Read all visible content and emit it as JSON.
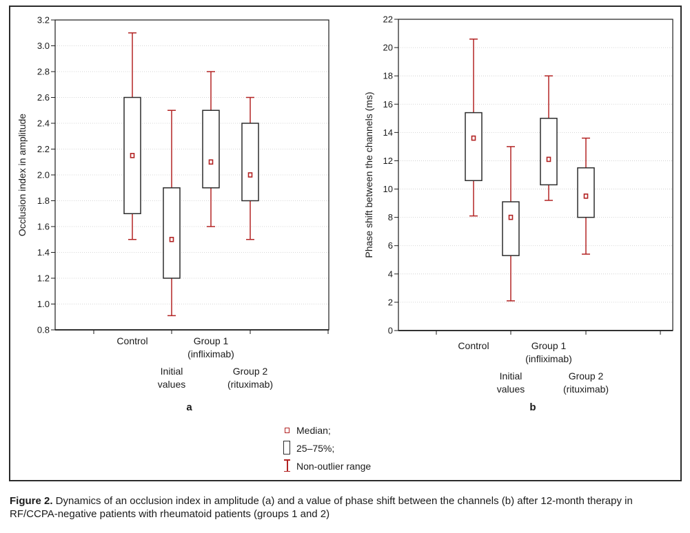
{
  "chart_data": [
    {
      "type": "box",
      "panel_label": "a",
      "ylabel": "Occlusion index in amplitude",
      "ylim": [
        0.8,
        3.2
      ],
      "yticks": [
        "0.8",
        "1.0",
        "1.2",
        "1.4",
        "1.6",
        "1.8",
        "2.0",
        "2.2",
        "2.4",
        "2.6",
        "2.8",
        "3.0",
        "3.2"
      ],
      "grid": true,
      "categories": [
        {
          "lines": [
            "Control"
          ],
          "median": 2.15,
          "q1": 1.7,
          "q3": 2.6,
          "min": 1.5,
          "max": 3.1
        },
        {
          "lines": [
            "Initial",
            "values"
          ],
          "median": 1.5,
          "q1": 1.2,
          "q3": 1.9,
          "min": 0.91,
          "max": 2.5
        },
        {
          "lines": [
            "Group 1",
            "(infliximab)"
          ],
          "median": 2.1,
          "q1": 1.9,
          "q3": 2.5,
          "min": 1.6,
          "max": 2.8
        },
        {
          "lines": [
            "Group 2",
            "(rituximab)"
          ],
          "median": 2.0,
          "q1": 1.8,
          "q3": 2.4,
          "min": 1.5,
          "max": 2.6
        }
      ]
    },
    {
      "type": "box",
      "panel_label": "b",
      "ylabel": "Phase shift between the channels (ms)",
      "ylim": [
        0,
        22
      ],
      "yticks": [
        "0",
        "2",
        "4",
        "6",
        "8",
        "10",
        "12",
        "14",
        "16",
        "18",
        "20",
        "22"
      ],
      "grid": true,
      "categories": [
        {
          "lines": [
            "Control"
          ],
          "median": 13.6,
          "q1": 10.6,
          "q3": 15.4,
          "min": 8.1,
          "max": 20.6
        },
        {
          "lines": [
            "Initial",
            "values"
          ],
          "median": 8.0,
          "q1": 5.3,
          "q3": 9.1,
          "min": 2.1,
          "max": 13.0
        },
        {
          "lines": [
            "Group 1",
            "(infliximab)"
          ],
          "median": 12.1,
          "q1": 10.3,
          "q3": 15.0,
          "min": 9.2,
          "max": 18.0
        },
        {
          "lines": [
            "Group 2",
            "(rituximab)"
          ],
          "median": 9.5,
          "q1": 8.0,
          "q3": 11.5,
          "min": 5.4,
          "max": 13.6
        }
      ]
    }
  ],
  "legend": {
    "median": "Median;",
    "box": "25–75%;",
    "whisker": "Non-outlier range"
  },
  "colors": {
    "whisker": "#b22222",
    "median": "#b22222",
    "box": "#2b2b2b",
    "grid": "#c8c8c8"
  },
  "caption": {
    "label": "Figure 2.",
    "text": " Dynamics of an occlusion index in amplitude (a) and a value of phase shift between the channels (b) after 12-month therapy in RF/CCPA-negative patients with rheumatoid patients (groups 1 and 2)"
  }
}
